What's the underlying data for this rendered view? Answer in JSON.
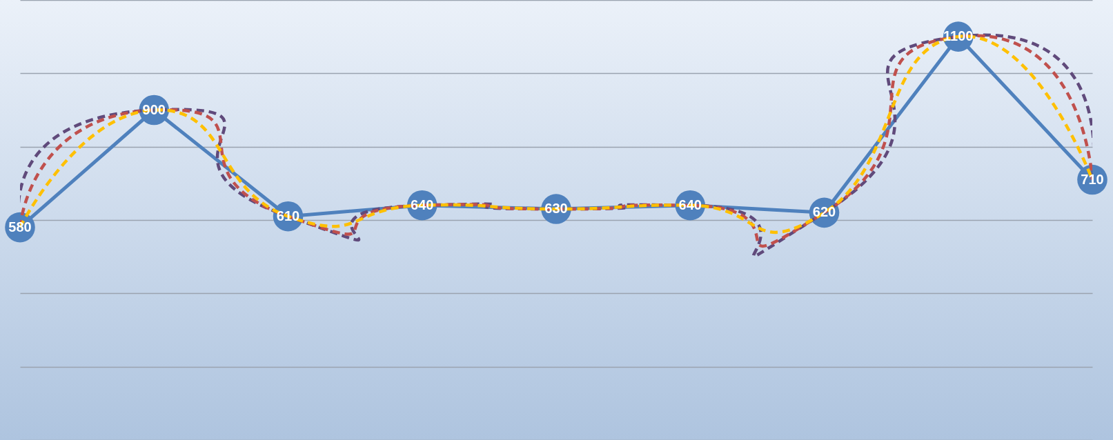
{
  "chart_data": {
    "type": "line",
    "categories": [
      null,
      null,
      null,
      null,
      null,
      null,
      null,
      null,
      null
    ],
    "grid": "y",
    "series": [
      {
        "color": "#4f81bd",
        "values": [
          580,
          900,
          610,
          640,
          630,
          640,
          620,
          1100,
          710
        ],
        "marker": "circle",
        "line_style": "solid",
        "value_labels": [
          "580",
          "900",
          "610",
          "640",
          "630",
          "640",
          "620",
          "1100",
          "710"
        ]
      },
      {
        "color": "#604a7b",
        "values": [
          580,
          900,
          610,
          640,
          630,
          640,
          620,
          1100,
          710
        ],
        "marker": "none",
        "line_style": "dashed"
      },
      {
        "color": "#c0504d",
        "values": [
          580,
          900,
          610,
          640,
          630,
          640,
          620,
          1100,
          710
        ],
        "marker": "none",
        "line_style": "dashed"
      },
      {
        "color": "#ffc000",
        "values": [
          580,
          900,
          610,
          640,
          630,
          640,
          620,
          1100,
          710
        ],
        "marker": "none",
        "line_style": "dashed"
      }
    ]
  }
}
